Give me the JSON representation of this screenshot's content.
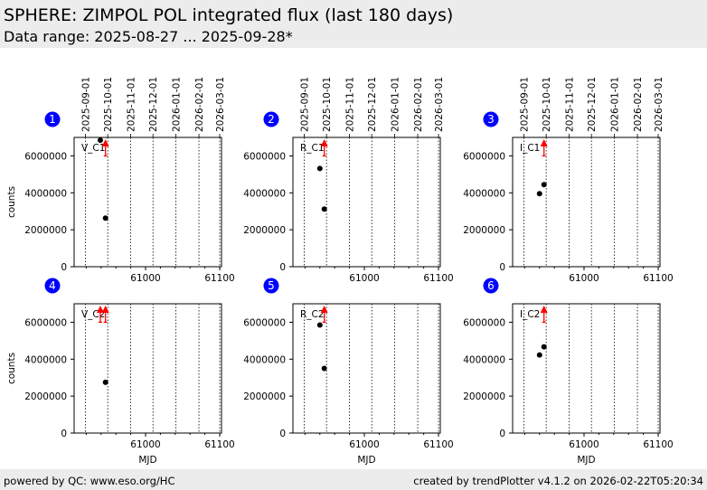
{
  "header": {
    "title": "SPHERE: ZIMPOL POL integrated flux (last 180 days)",
    "subtitle": "Data range: 2025-08-27 ... 2025-09-28*"
  },
  "footer": {
    "left": "powered by QC: www.eso.org/HC",
    "right": "created by trendPlotter v4.1.2 on 2026-02-22T05:20:34"
  },
  "colors": {
    "badge": "#0000ff",
    "limit": "#ff0000",
    "point": "#000000"
  },
  "chart_data": {
    "type": "scatter",
    "xlabel": "MJD",
    "ylabel": "counts",
    "xlim": [
      60903.7,
      61102.4
    ],
    "ylim": [
      0,
      7000000
    ],
    "xticks": [
      61000,
      61100
    ],
    "yticks": [
      0,
      2000000,
      4000000,
      6000000
    ],
    "date_ticks": [
      {
        "label": "2025-09-01",
        "mjd": 60919
      },
      {
        "label": "2025-10-01",
        "mjd": 60949
      },
      {
        "label": "2025-11-01",
        "mjd": 60980
      },
      {
        "label": "2025-12-01",
        "mjd": 61010
      },
      {
        "label": "2026-01-01",
        "mjd": 61041
      },
      {
        "label": "2026-02-01",
        "mjd": 61072
      },
      {
        "label": "2026-03-01",
        "mjd": 61100
      }
    ],
    "panels": [
      {
        "num": "1",
        "label": "V_C1",
        "points": [
          [
            60939,
            6850000
          ],
          [
            60946,
            2630000
          ]
        ],
        "limits": [
          [
            60946,
            6000000
          ]
        ]
      },
      {
        "num": "2",
        "label": "R_C1",
        "points": [
          [
            60940,
            5320000
          ],
          [
            60946,
            3120000
          ]
        ],
        "limits": [
          [
            60946,
            6000000
          ]
        ]
      },
      {
        "num": "3",
        "label": "I_C1",
        "points": [
          [
            60940,
            3950000
          ],
          [
            60946,
            4440000
          ]
        ],
        "limits": [
          [
            60946,
            6000000
          ]
        ]
      },
      {
        "num": "4",
        "label": "V_C2",
        "points": [
          [
            60946,
            2750000
          ]
        ],
        "limits": [
          [
            60939,
            6000000
          ],
          [
            60946,
            6000000
          ]
        ]
      },
      {
        "num": "5",
        "label": "R_C2",
        "points": [
          [
            60940,
            5850000
          ],
          [
            60946,
            3500000
          ]
        ],
        "limits": [
          [
            60946,
            6000000
          ]
        ]
      },
      {
        "num": "6",
        "label": "I_C2",
        "points": [
          [
            60940,
            4230000
          ],
          [
            60946,
            4670000
          ]
        ],
        "limits": [
          [
            60946,
            6000000
          ]
        ]
      }
    ]
  }
}
